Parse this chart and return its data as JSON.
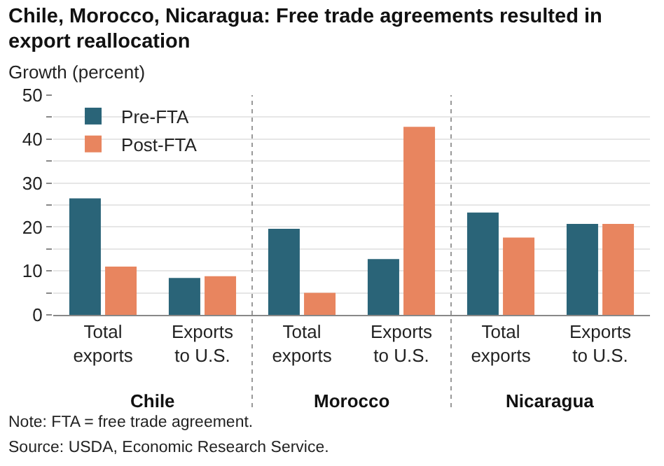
{
  "chart_data": {
    "type": "bar",
    "title": "Chile, Morocco, Nicaragua: Free trade agreements resulted in export reallocation",
    "ylabel": "Growth (percent)",
    "categories": [
      "Total exports",
      "Exports to U.S.",
      "Total exports",
      "Exports to U.S.",
      "Total exports",
      "Exports to U.S."
    ],
    "series": [
      {
        "name": "Pre-FTA",
        "color": "#2a6478",
        "values": [
          26.5,
          8.4,
          19.6,
          12.7,
          23.3,
          20.7
        ]
      },
      {
        "name": "Post-FTA",
        "color": "#e8855f",
        "values": [
          11.0,
          8.8,
          5.0,
          42.8,
          17.6,
          20.7
        ]
      }
    ],
    "ylim": [
      0,
      50
    ],
    "yticks": [
      0,
      {
        "value": 5,
        "label": null
      },
      10,
      {
        "value": 15,
        "label": null
      },
      20,
      {
        "value": 25,
        "label": null
      },
      30,
      {
        "value": 35,
        "label": null
      },
      40,
      {
        "value": 45,
        "label": null
      },
      50
    ],
    "grid": true,
    "legend": "top left",
    "annotations": [
      "Chile",
      "Morocco",
      "Nicaragua",
      "Note: FTA = free trade agreement.",
      "Source: USDA, Economic Research Service."
    ]
  }
}
